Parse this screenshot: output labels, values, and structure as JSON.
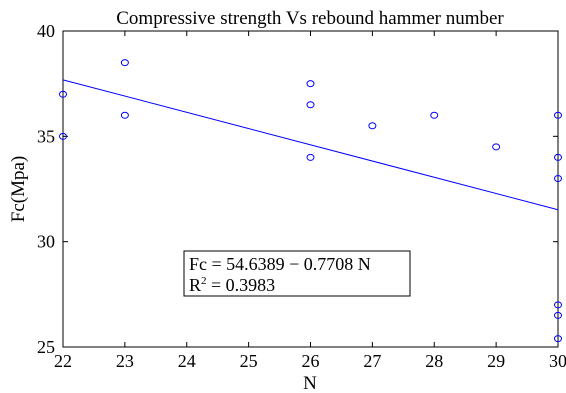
{
  "chart_data": {
    "type": "scatter",
    "title": "Compressive strength Vs rebound hammer number",
    "xlabel": "N",
    "ylabel": "Fc(Mpa)",
    "xlim": [
      22,
      30
    ],
    "ylim": [
      25,
      40
    ],
    "xticks": [
      22,
      23,
      24,
      25,
      26,
      27,
      28,
      29,
      30
    ],
    "yticks": [
      25,
      30,
      35,
      40
    ],
    "grid": false,
    "points": [
      {
        "x": 22,
        "y": 37
      },
      {
        "x": 22,
        "y": 35
      },
      {
        "x": 23,
        "y": 38.5
      },
      {
        "x": 23,
        "y": 36
      },
      {
        "x": 26,
        "y": 37.5
      },
      {
        "x": 26,
        "y": 36.5
      },
      {
        "x": 26,
        "y": 34
      },
      {
        "x": 27,
        "y": 35.5
      },
      {
        "x": 28,
        "y": 36
      },
      {
        "x": 29,
        "y": 34.5
      },
      {
        "x": 30,
        "y": 36
      },
      {
        "x": 30,
        "y": 34
      },
      {
        "x": 30,
        "y": 33
      },
      {
        "x": 30,
        "y": 27
      },
      {
        "x": 30,
        "y": 26.5
      },
      {
        "x": 30,
        "y": 25.4
      }
    ],
    "fit": {
      "intercept": 54.6389,
      "slope": -0.7708
    },
    "annotation": {
      "line1": "Fc = 54.6389 − 0.7708 N",
      "line2_prefix": "R",
      "line2_sup": "2",
      "line2_suffix": " = 0.3983"
    },
    "marker_color": "#0000ff",
    "line_color": "#0000ff"
  }
}
